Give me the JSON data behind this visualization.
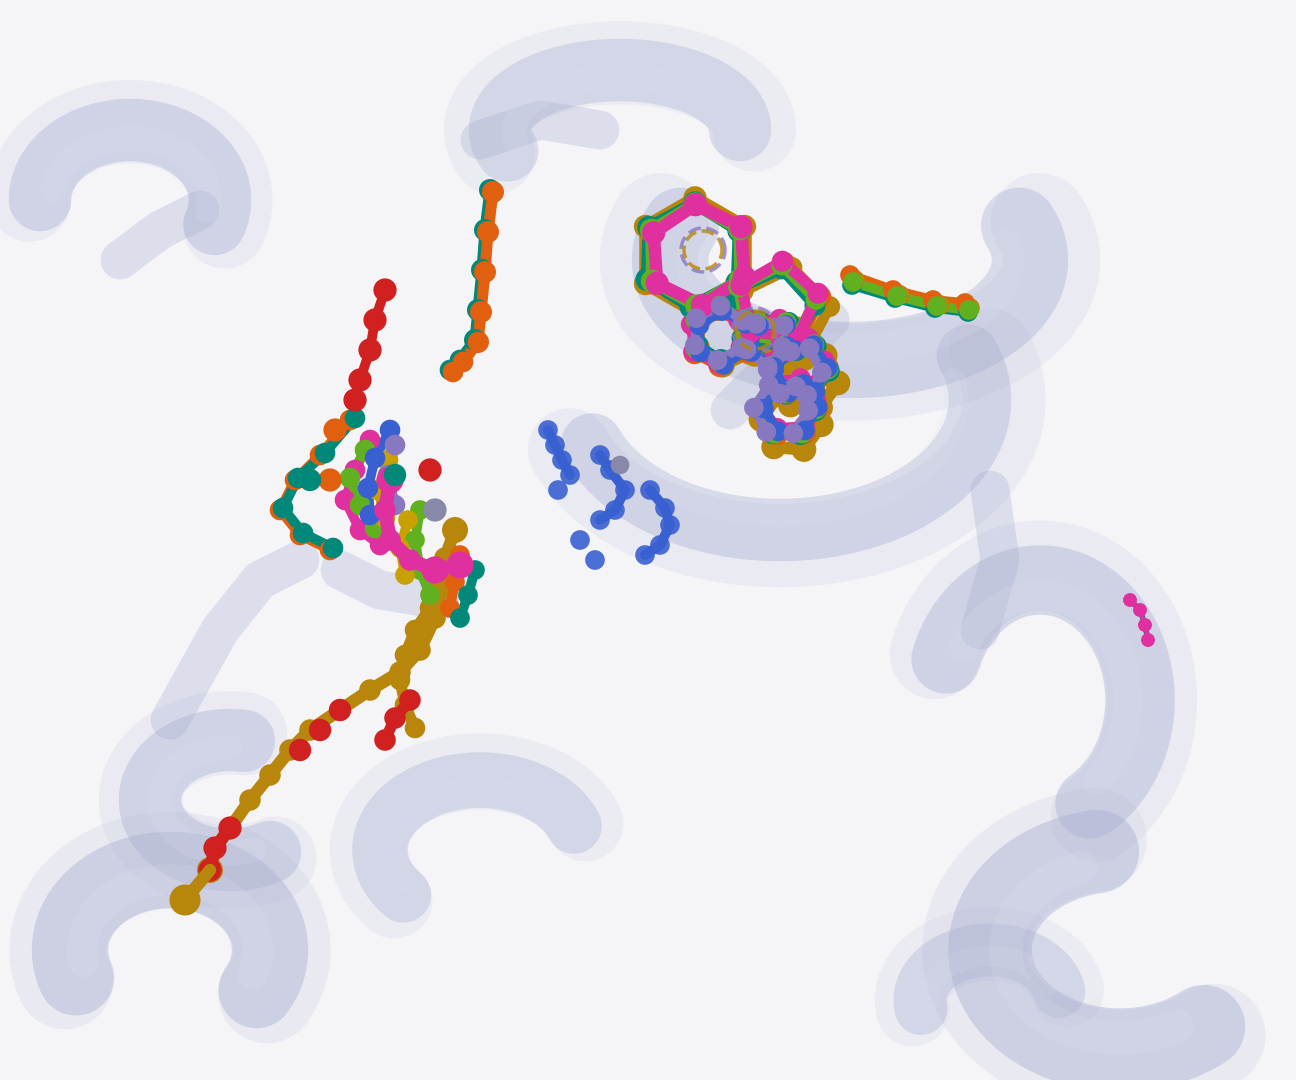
{
  "figsize": [
    12.96,
    10.8
  ],
  "dpi": 100,
  "background_color": "#f5f5f8",
  "ribbon_color_light": "#c8ccdf",
  "ribbon_color_mid": "#a8aed0",
  "ribbon_color_dark": "#9098c0",
  "ribbon_alpha": 0.45,
  "lc": {
    "ochre": "#b8860b",
    "orange": "#e06010",
    "teal": "#008878",
    "pink": "#e030a0",
    "green": "#60b020",
    "yellow": "#c8a000",
    "lilac": "#8878c0",
    "blue": "#3860d0",
    "red": "#d02020",
    "purple_gray": "#8888a8"
  },
  "bond_lw": 7,
  "sphere_scale": 200,
  "small_sphere": 120,
  "large_sphere": 300
}
